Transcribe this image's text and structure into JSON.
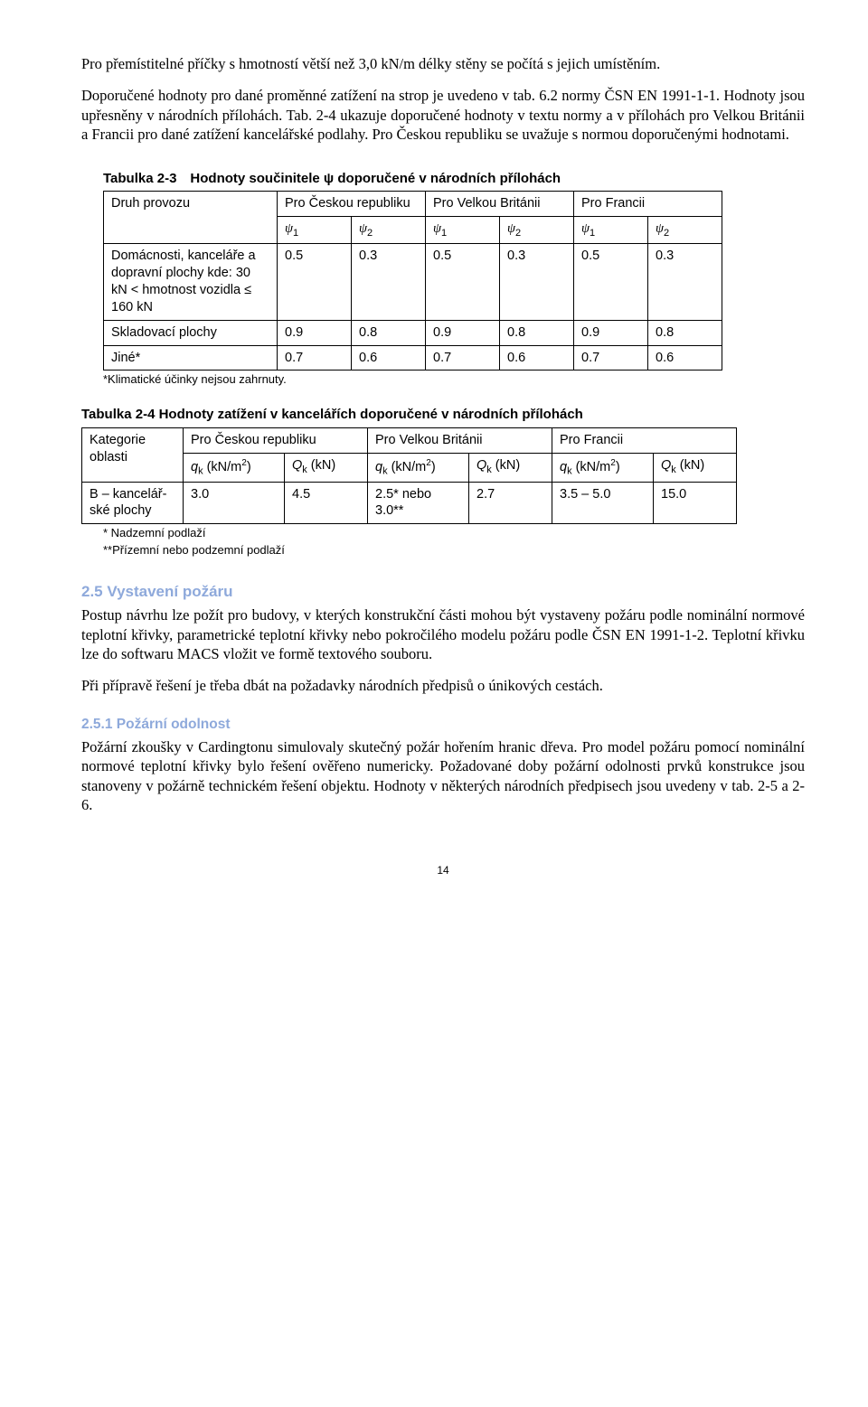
{
  "colors": {
    "heading_blue": "#8ea9db",
    "text": "#000000",
    "background": "#ffffff",
    "border": "#000000"
  },
  "para1": "Pro přemístitelné příčky s hmotností větší než 3,0 kN/m délky stěny se počítá s jejich umístěním.",
  "para2": "Doporučené hodnoty pro dané proměnné zatížení na strop je uvedeno v tab. 6.2 normy ČSN EN 1991-1-1. Hodnoty jsou upřesněny v národních přílohách. Tab. 2-4 ukazuje doporučené hodnoty v textu normy a v přílohách pro Velkou Británii a Francii pro dané zatížení kancelářské podlahy. Pro Českou republiku se uvažuje s normou doporučenými hodnotami.",
  "table23": {
    "caption": "Tabulka 2-3 Hodnoty součinitele ψ doporučené v národních přílohách",
    "header_row1": [
      "Druh provozu",
      "Pro Českou republiku",
      "Pro Velkou Británii",
      "Pro Francii"
    ],
    "psi_labels": [
      "ψ",
      "ψ",
      "ψ",
      "ψ",
      "ψ",
      "ψ"
    ],
    "psi_subs": [
      "1",
      "2",
      "1",
      "2",
      "1",
      "2"
    ],
    "rows": [
      {
        "label": "Domácnosti, kanceláře a dopravní plochy kde: 30 kN < hmotnost vozidla ≤ 160 kN",
        "vals": [
          "0.5",
          "0.3",
          "0.5",
          "0.3",
          "0.5",
          "0.3"
        ]
      },
      {
        "label": "Skladovací plochy",
        "vals": [
          "0.9",
          "0.8",
          "0.9",
          "0.8",
          "0.9",
          "0.8"
        ]
      },
      {
        "label": "Jiné*",
        "vals": [
          "0.7",
          "0.6",
          "0.7",
          "0.6",
          "0.7",
          "0.6"
        ]
      }
    ],
    "footnote": "*Klimatické účinky nejsou zahrnuty.",
    "col_widths": {
      "label": 175,
      "val": 65
    }
  },
  "table24": {
    "caption": "Tabulka 2-4 Hodnoty zatížení v kancelářích doporučené v národních přílohách",
    "header_row1": [
      "Kategorie oblasti",
      "Pro Českou republiku",
      "Pro Velkou Británii",
      "Pro Francii"
    ],
    "header_row2_q": "q",
    "header_row2_Q": "Q",
    "header_row2_k": "k",
    "header_row2_unit_q": " (kN/m",
    "header_row2_unit_q2": ")",
    "header_row2_unit_Q": " (kN)",
    "row": {
      "label": "B – kancelář-ské plochy",
      "vals": [
        "3.0",
        "4.5",
        "2.5* nebo 3.0**",
        "2.7",
        "3.5 – 5.0",
        "15.0"
      ]
    },
    "footnotes": [
      "* Nadzemní podlaží",
      "**Přízemní nebo podzemní podlaží"
    ],
    "col_widths": {
      "label": 95,
      "q": 95,
      "Q": 75
    }
  },
  "sec25_title": "2.5 Vystavení požáru",
  "sec25_p1": "Postup návrhu lze požít pro budovy, v kterých konstrukční části mohou být vystaveny požáru podle nominální normové teplotní křivky, parametrické teplotní křivky nebo pokročilého modelu požáru podle ČSN EN 1991-1-2. Teplotní křivku lze do softwaru MACS vložit ve formě textového souboru.",
  "sec25_p2": "Při přípravě řešení je třeba dbát na požadavky národních předpisů o únikových cestách.",
  "sec251_title": "2.5.1 Požární odolnost",
  "sec251_p1": "Požární zkoušky v Cardingtonu simulovaly skutečný požár hořením hranic dřeva. Pro model požáru pomocí nominální normové teplotní křivky bylo řešení ověřeno numericky. Požadované doby požární odolnosti prvků konstrukce jsou stanoveny v požárně technickém řešení objektu. Hodnoty v některých národních předpisech jsou uvedeny v tab. 2-5 a 2-6.",
  "pagenum": "14"
}
